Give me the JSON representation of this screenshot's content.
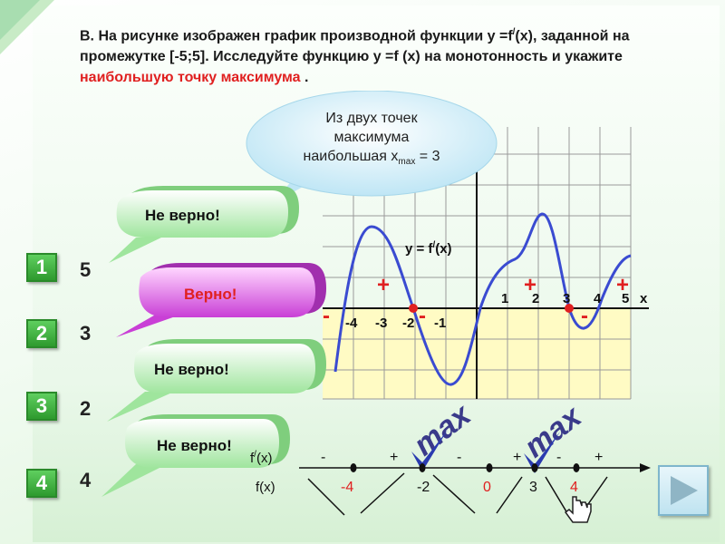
{
  "question": {
    "part1": "В. На рисунке изображен график производной функции y =f",
    "sup": "/",
    "part2": "(x), заданной на промежутке [-5;5]. Исследуйте функцию y =f (x) на монотонность и укажите ",
    "highlight": "наибольшую точку максимума",
    "end": " ."
  },
  "hint": {
    "line1": "Из двух точек",
    "line2": "максимума",
    "line3_main": "наибольшая x",
    "line3_sub": "max",
    "line3_end": " = 3"
  },
  "options": [
    {
      "num": "1",
      "answer": "5",
      "feedback": "Не верно!"
    },
    {
      "num": "2",
      "answer": "3",
      "feedback": "Верно!"
    },
    {
      "num": "3",
      "answer": "2",
      "feedback": "Не верно!"
    },
    {
      "num": "4",
      "answer": "4",
      "feedback": "Не верно!"
    }
  ],
  "graph": {
    "func_label": "y = f",
    "func_sup": "/",
    "func_end": "(x)",
    "x_axis_label": "x",
    "neg_ticks": [
      "-4",
      "-3",
      "-2",
      "-1"
    ],
    "pos_ticks": [
      "1",
      "2",
      "3",
      "4",
      "5"
    ],
    "signs": {
      "plus": "+",
      "minus": "-"
    }
  },
  "sign_line": {
    "fprime_label": "f",
    "fprime_sup": "/",
    "fprime_end": "(x)",
    "f_label": "f(x)",
    "signs": [
      "-",
      "+",
      "-",
      "+",
      "-",
      "+"
    ],
    "points": [
      "-4",
      "-2",
      "0",
      "3",
      "4"
    ],
    "max_label": "max"
  },
  "colors": {
    "accent_red": "#e02020",
    "curve_blue": "#3a4bd1",
    "check_blue": "#2a3bb0",
    "button_green": "#2e9a2e"
  }
}
